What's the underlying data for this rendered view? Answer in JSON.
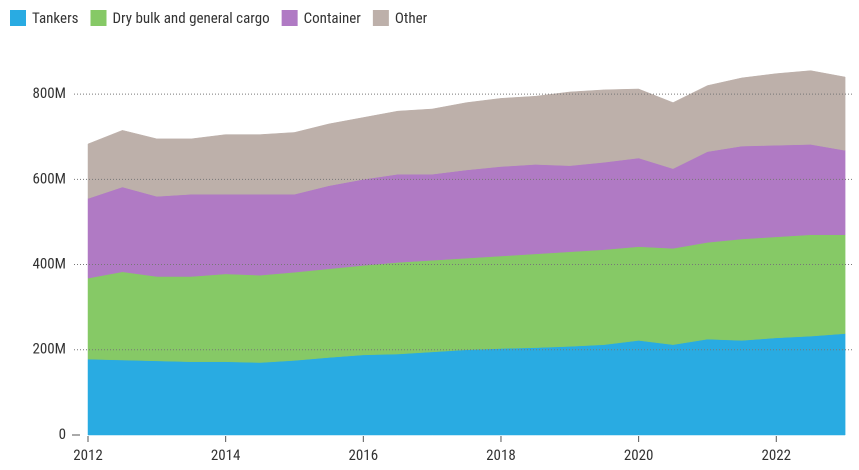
{
  "chart_data": {
    "type": "stacked_area",
    "x": [
      2012,
      2012.5,
      2013,
      2013.5,
      2014,
      2014.5,
      2015,
      2015.5,
      2016,
      2016.5,
      2017,
      2017.5,
      2018,
      2018.5,
      2019,
      2019.5,
      2020,
      2020.5,
      2021,
      2021.5,
      2022,
      2022.5,
      2023
    ],
    "xlim": [
      2012,
      2023.1
    ],
    "xticks": [
      2012,
      2014,
      2016,
      2018,
      2020,
      2022
    ],
    "ylim": [
      0,
      880000000
    ],
    "yticks": [
      0,
      {
        "value": 200000000,
        "label": "200M"
      },
      {
        "value": 400000000,
        "label": "400M"
      },
      {
        "value": 600000000,
        "label": "600M"
      },
      {
        "value": 800000000,
        "label": "800M"
      }
    ],
    "grid": true,
    "legend": "top-left",
    "series": [
      {
        "name": "Tankers",
        "color": "#29abe2",
        "values": [
          178000000.0,
          176000000.0,
          174000000.0,
          172000000.0,
          172000000.0,
          170000000.0,
          175000000.0,
          182000000.0,
          188000000.0,
          190000000.0,
          195000000.0,
          200000000.0,
          203000000.0,
          205000000.0,
          208000000.0,
          212000000.0,
          222000000.0,
          212000000.0,
          225000000.0,
          222000000.0,
          228000000.0,
          232000000.0,
          238000000.0
        ]
      },
      {
        "name": "Dry bulk and general cargo",
        "color": "#86c966",
        "values": [
          190000000.0,
          207000000.0,
          198000000.0,
          200000000.0,
          206000000.0,
          205000000.0,
          207000000.0,
          208000000.0,
          210000000.0,
          215000000.0,
          215000000.0,
          215000000.0,
          217000000.0,
          220000000.0,
          222000000.0,
          223000000.0,
          220000000.0,
          226000000.0,
          227000000.0,
          238000000.0,
          237000000.0,
          238000000.0,
          232000000.0
        ]
      },
      {
        "name": "Container",
        "color": "#b07ac4",
        "values": [
          187000000.0,
          199000000.0,
          188000000.0,
          193000000.0,
          187000000.0,
          190000000.0,
          183000000.0,
          195000000.0,
          202000000.0,
          207000000.0,
          202000000.0,
          207000000.0,
          210000000.0,
          210000000.0,
          202000000.0,
          205000000.0,
          208000000.0,
          187000000.0,
          213000000.0,
          218000000.0,
          215000000.0,
          212000000.0,
          198000000.0
        ]
      },
      {
        "name": "Other",
        "color": "#bdb0aa",
        "values": [
          128000000.0,
          133000000.0,
          135000000.0,
          130000000.0,
          140000000.0,
          140000000.0,
          145000000.0,
          145000000.0,
          145000000.0,
          148000000.0,
          153000000.0,
          158000000.0,
          160000000.0,
          160000000.0,
          173000000.0,
          170000000.0,
          162000000.0,
          155000000.0,
          155000000.0,
          160000000.0,
          168000000.0,
          173000000.0,
          172000000.0
        ]
      }
    ]
  }
}
